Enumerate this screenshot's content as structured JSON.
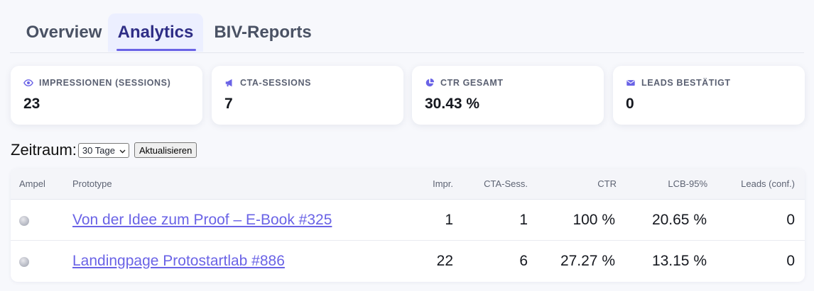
{
  "tabs": [
    {
      "label": "Overview",
      "active": false
    },
    {
      "label": "Analytics",
      "active": true
    },
    {
      "label": "BIV-Reports",
      "active": false
    }
  ],
  "accent_color": "#6a63e6",
  "cards": [
    {
      "icon": "eye-icon",
      "label": "IMPRESSIONEN (SESSIONS)",
      "value": "23"
    },
    {
      "icon": "megaphone-icon",
      "label": "CTA-SESSIONS",
      "value": "7"
    },
    {
      "icon": "pie-chart-icon",
      "label": "CTR GESAMT",
      "value": "30.43 %"
    },
    {
      "icon": "envelope-icon",
      "label": "LEADS BESTÄTIGT",
      "value": "0"
    }
  ],
  "controls": {
    "label": "Zeitraum:",
    "period_selected": "30 Tage",
    "refresh_label": "Aktualisieren"
  },
  "table": {
    "headers": {
      "ampel": "Ampel",
      "prototype": "Prototype",
      "impr": "Impr.",
      "cta": "CTA-Sess.",
      "ctr": "CTR",
      "lcb": "LCB-95%",
      "leads": "Leads (conf.)"
    },
    "rows": [
      {
        "ampel": "grey",
        "prototype": "Von der Idee zum Proof – E-Book #325",
        "impr": "1",
        "cta": "1",
        "ctr": "100 %",
        "lcb": "20.65 %",
        "leads": "0"
      },
      {
        "ampel": "grey",
        "prototype": "Landingpage Protostartlab #886",
        "impr": "22",
        "cta": "6",
        "ctr": "27.27 %",
        "lcb": "13.15 %",
        "leads": "0"
      }
    ]
  }
}
